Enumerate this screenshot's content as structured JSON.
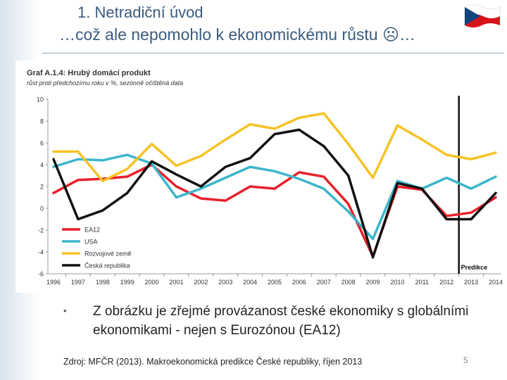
{
  "slide": {
    "title_line1": "1. Netradiční úvod",
    "title_line2": "…což ale nepomohlo k ekonomickému růstu ☹…",
    "bullet": "Z obrázku je zřejmé provázanost české ekonomiky s globálními ekonomikami - nejen s Eurozónou (EA12)",
    "source": "Zdroj: MFČR (2013). Makroekonomická predikce České republiky, říjen 2013",
    "page_number": "5",
    "flag_icon": "czech-flag"
  },
  "chart_data": {
    "type": "line",
    "title": "Graf A.1.4: Hrubý domácí produkt",
    "subtitle": "růst proti předchozímu roku v %, sezónně očištěná data",
    "xlabel": "",
    "ylabel": "",
    "ylim": [
      -6,
      10
    ],
    "yticks": [
      -6,
      -4,
      -2,
      0,
      2,
      4,
      6,
      8,
      10
    ],
    "categories": [
      "1996",
      "1997",
      "1998",
      "1999",
      "2000",
      "2001",
      "2002",
      "2003",
      "2004",
      "2005",
      "2006",
      "2007",
      "2008",
      "2009",
      "2010",
      "2011",
      "2012",
      "2013",
      "2014"
    ],
    "series": [
      {
        "name": "EA12",
        "color": "#e8202a",
        "values": [
          1.4,
          2.6,
          2.7,
          2.9,
          4.0,
          2.0,
          0.9,
          0.7,
          2.0,
          1.8,
          3.3,
          2.9,
          0.4,
          -4.4,
          2.0,
          1.7,
          -0.7,
          -0.4,
          1.0
        ]
      },
      {
        "name": "USA",
        "color": "#3cb6ca",
        "values": [
          3.8,
          4.5,
          4.4,
          4.9,
          4.1,
          1.0,
          1.8,
          2.8,
          3.8,
          3.4,
          2.7,
          1.8,
          -0.3,
          -2.8,
          2.5,
          1.8,
          2.8,
          1.8,
          2.9
        ]
      },
      {
        "name": "Rozvojové země",
        "color": "#f6c325",
        "values": [
          5.2,
          5.2,
          2.5,
          3.6,
          5.9,
          3.9,
          4.8,
          6.3,
          7.7,
          7.3,
          8.3,
          8.7,
          5.9,
          2.8,
          7.6,
          6.3,
          4.9,
          4.5,
          5.1
        ]
      },
      {
        "name": "Česká republika",
        "color": "#111111",
        "values": [
          4.5,
          -1.0,
          -0.2,
          1.4,
          4.3,
          3.1,
          2.0,
          3.8,
          4.6,
          6.8,
          7.2,
          5.7,
          3.0,
          -4.5,
          2.3,
          1.8,
          -1.0,
          -1.0,
          1.4
        ]
      }
    ],
    "legend": "bottom-left",
    "grid": false,
    "forecast_line_after": "2012",
    "forecast_label": "Predikce"
  }
}
